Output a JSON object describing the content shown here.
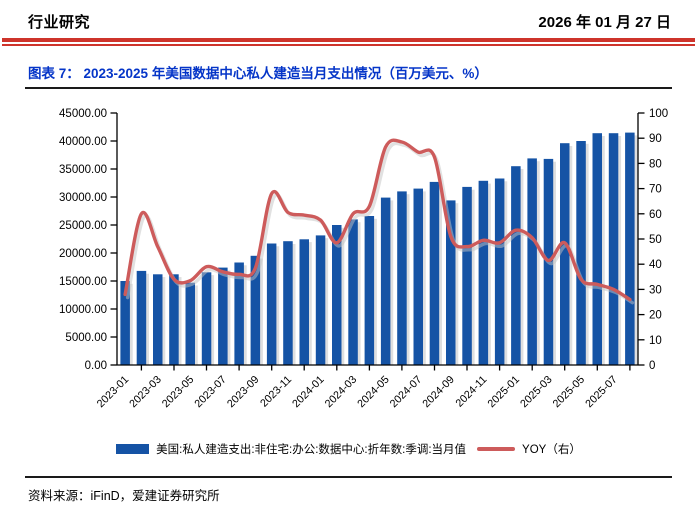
{
  "header": {
    "left": "行业研究",
    "right": "2026 年 01 月 27 日"
  },
  "figure": {
    "title": "图表 7： 2023-2025 年美国数据中心私人建造当月支出情况（百万美元、%）",
    "source": "资料来源：iFinD，爱建证券研究所"
  },
  "legend": {
    "bar_label": "美国:私人建造支出:非住宅:办公:数据中心:折年数:季调:当月值",
    "line_label": "YOY（右）"
  },
  "colors": {
    "bar": "#1553A5",
    "bar_shadow": "#c9c9c9",
    "line": "#CD5B5B",
    "line_shadow": "#c4c4c4",
    "header_rule": "#CE342B",
    "title_blue": "#0535C8",
    "axis": "#000000"
  },
  "chart_data": {
    "type": "bar",
    "combo_note": "monthly bar series on left axis (million USD) with YOY % line on right axis",
    "title": "2023-2025 年美国数据中心私人建造当月支出情况（百万美元、%）",
    "x": [
      "2023-01",
      "2023-02",
      "2023-03",
      "2023-04",
      "2023-05",
      "2023-06",
      "2023-07",
      "2023-08",
      "2023-09",
      "2023-10",
      "2023-11",
      "2023-12",
      "2024-01",
      "2024-02",
      "2024-03",
      "2024-04",
      "2024-05",
      "2024-06",
      "2024-07",
      "2024-08",
      "2024-09",
      "2024-10",
      "2024-11",
      "2024-12",
      "2025-01",
      "2025-02",
      "2025-03",
      "2025-04",
      "2025-05",
      "2025-06",
      "2025-07",
      "2025-08"
    ],
    "x_tick_labels": [
      "2023-01",
      "2023-03",
      "2023-05",
      "2023-07",
      "2023-09",
      "2023-11",
      "2024-01",
      "2024-03",
      "2024-05",
      "2024-07",
      "2024-09",
      "2024-11",
      "2025-01",
      "2025-03",
      "2025-05",
      "2025-07"
    ],
    "series": [
      {
        "name": "美国:私人建造支出:非住宅:办公:数据中心:折年数:季调:当月值",
        "type": "bar",
        "axis": "left",
        "values": [
          15000,
          16800,
          16200,
          16200,
          14700,
          16550,
          17400,
          18300,
          19500,
          21700,
          22100,
          22450,
          23150,
          25000,
          26000,
          26600,
          29900,
          31000,
          31500,
          32700,
          29400,
          31800,
          32900,
          33300,
          35500,
          36900,
          36800,
          39600,
          40000,
          41400,
          41400,
          41500
        ]
      },
      {
        "name": "YOY（右）",
        "type": "line",
        "axis": "right",
        "values": [
          28,
          60,
          47,
          34,
          33.5,
          39,
          37,
          36,
          38.5,
          68,
          60.5,
          59.5,
          57.5,
          48.5,
          60,
          63,
          86.5,
          88.5,
          84.5,
          82.5,
          51,
          47,
          49.5,
          48.5,
          53.5,
          50.5,
          41.5,
          48.5,
          34,
          32,
          30,
          26
        ]
      }
    ],
    "left_axis": {
      "min": 0,
      "max": 45000,
      "step": 5000,
      "tick_labels": [
        "0.00",
        "5000.00",
        "10000.00",
        "15000.00",
        "20000.00",
        "25000.00",
        "30000.00",
        "35000.00",
        "40000.00",
        "45000.00"
      ]
    },
    "right_axis": {
      "min": 0,
      "max": 100,
      "step": 10,
      "tick_labels": [
        "0",
        "10",
        "20",
        "30",
        "40",
        "50",
        "60",
        "70",
        "80",
        "90",
        "100"
      ]
    },
    "grid": false,
    "legend_position": "bottom"
  }
}
